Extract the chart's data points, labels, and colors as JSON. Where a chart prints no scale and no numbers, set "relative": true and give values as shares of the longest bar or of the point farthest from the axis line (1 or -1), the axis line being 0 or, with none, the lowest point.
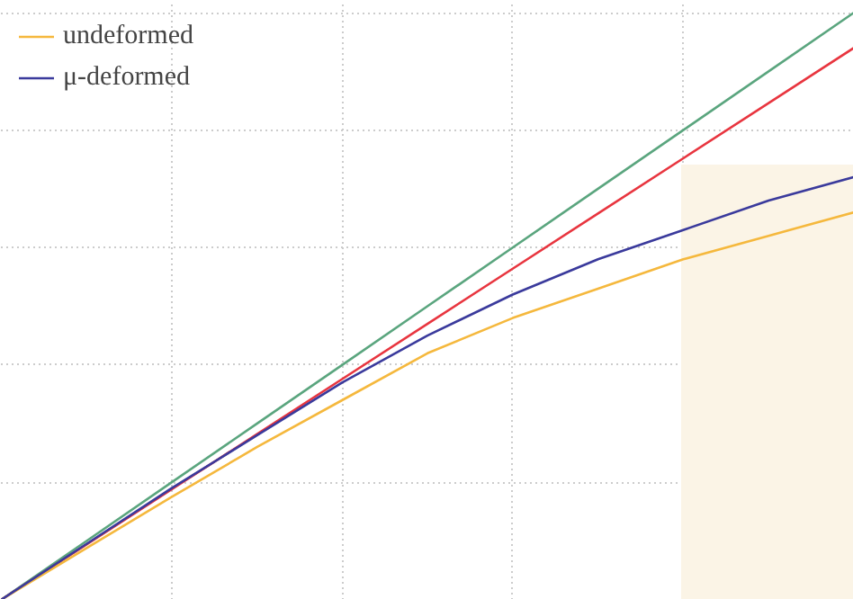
{
  "chart_data": {
    "type": "line",
    "relative": true,
    "categories": [
      null,
      null,
      null,
      null,
      null,
      null,
      null,
      null,
      null,
      null,
      null
    ],
    "series": [
      {
        "color": "#5aa57e",
        "values": [
          0,
          0.1,
          0.2,
          0.3,
          0.4,
          0.5,
          0.6,
          0.7,
          0.8,
          0.9,
          1
        ]
      },
      {
        "color": "#e8353f",
        "values": [
          0,
          0.094,
          0.188,
          0.282,
          0.376,
          0.47,
          0.564,
          0.658,
          0.752,
          0.846,
          0.94
        ]
      },
      {
        "name": "undeformed",
        "color": "#f5b83d",
        "values": [
          0,
          0.088,
          0.175,
          0.26,
          0.34,
          0.42,
          0.48,
          0.53,
          0.58,
          0.62,
          0.66
        ]
      },
      {
        "name": "μ-deformed",
        "color": "#3a3a9c",
        "values": [
          0,
          0.095,
          0.19,
          0.28,
          0.37,
          0.45,
          0.52,
          0.58,
          0.63,
          0.68,
          0.72
        ]
      }
    ],
    "grid": true,
    "legend": "top left",
    "line_style": "solid",
    "marker": "none"
  }
}
